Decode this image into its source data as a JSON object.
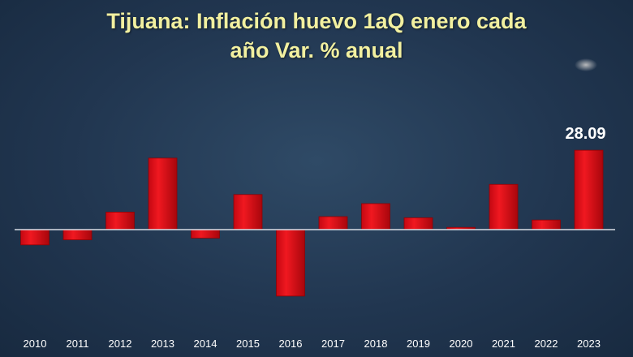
{
  "title_line1": "Tijuana: Inflación huevo 1aQ enero cada",
  "title_line2": "año Var. % anual",
  "chart_data": {
    "type": "bar",
    "title": "Tijuana: Inflación huevo 1aQ enero cada año Var. % anual",
    "xlabel": "",
    "ylabel": "",
    "categories": [
      "2010",
      "2011",
      "2012",
      "2013",
      "2014",
      "2015",
      "2016",
      "2017",
      "2018",
      "2019",
      "2020",
      "2021",
      "2022",
      "2023"
    ],
    "values": [
      -5.4,
      -3.6,
      6.2,
      25.3,
      -3.0,
      12.4,
      -23.5,
      4.6,
      9.2,
      4.2,
      0.8,
      16.0,
      3.4,
      28.09
    ],
    "data_labels": [
      {
        "index": 13,
        "text": "28.09"
      }
    ],
    "ylim": [
      -33,
      64
    ],
    "grid": false,
    "colors": {
      "bar": "#e8101a",
      "bar_dark": "#a8060c",
      "baseline": "#d8dde6",
      "title": "#f2f0a0"
    }
  }
}
